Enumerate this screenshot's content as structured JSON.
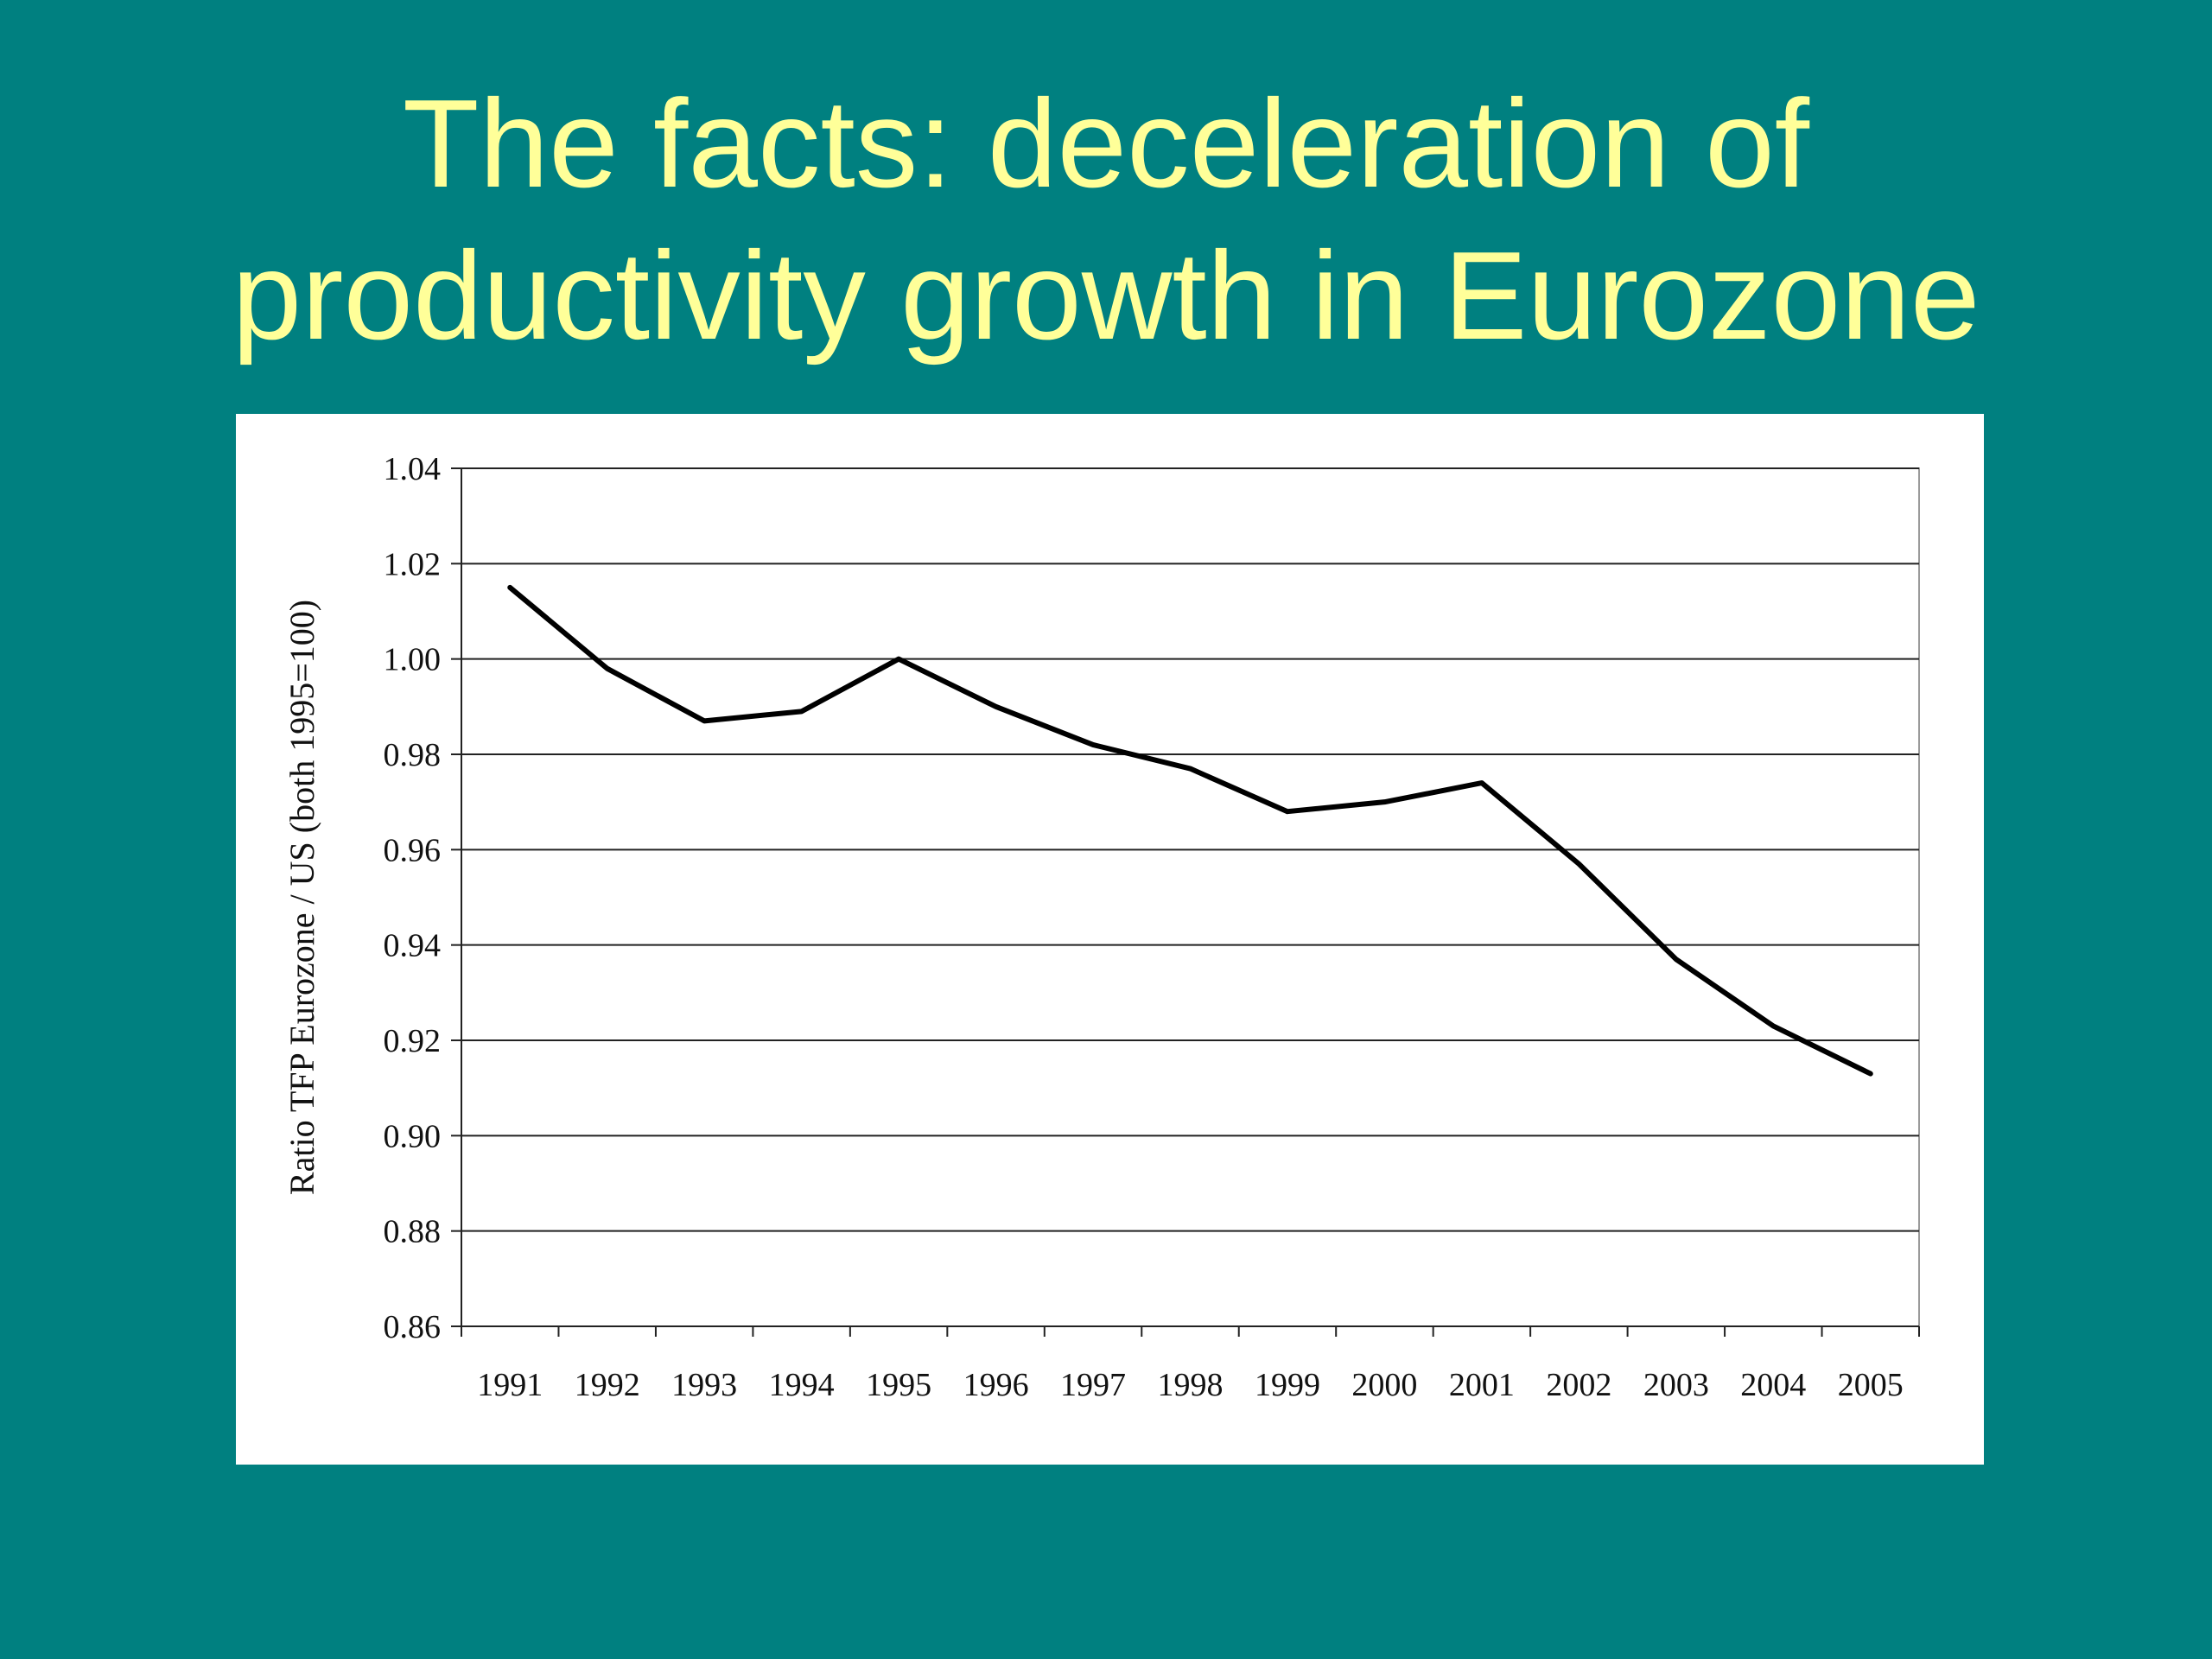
{
  "slide": {
    "title_line1": "The facts: deceleration of",
    "title_line2": "productivity growth in Eurozone",
    "background_color": "#008080",
    "title_color": "#FFFF99"
  },
  "chart_data": {
    "type": "line",
    "title": "",
    "xlabel": "",
    "ylabel": "Ratio TFP Eurozone / US (both 1995=100)",
    "categories": [
      "1991",
      "1992",
      "1993",
      "1994",
      "1995",
      "1996",
      "1997",
      "1998",
      "1999",
      "2000",
      "2001",
      "2002",
      "2003",
      "2004",
      "2005"
    ],
    "series": [
      {
        "values": [
          1.015,
          0.998,
          0.987,
          0.989,
          1.0,
          0.99,
          0.982,
          0.977,
          0.968,
          0.97,
          0.974,
          0.957,
          0.937,
          0.923,
          0.913
        ],
        "color": "#000000"
      }
    ],
    "ylim": [
      0.86,
      1.04
    ],
    "yticks": [
      "0.86",
      "0.88",
      "0.90",
      "0.92",
      "0.94",
      "0.96",
      "0.98",
      "1.00",
      "1.02",
      "1.04"
    ],
    "grid": true
  }
}
